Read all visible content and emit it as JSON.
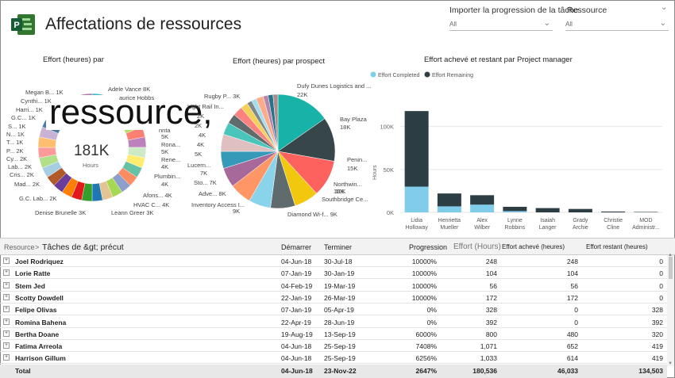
{
  "header": {
    "title": "Affectations de ressources",
    "filter1_label": "Importer la progression de la tâche",
    "filter1_value": "All",
    "filter2_label": "Ressource",
    "filter2_value": "All"
  },
  "donut1": {
    "title": "Effort (heures) par",
    "overlay": "ressource,",
    "center_value": "181K",
    "center_label": "Hours",
    "labels": [
      "Megan B... 1K",
      "Cynthi... 1K",
      "Harri... 1K",
      "G.C... 1K",
      "S... 1K",
      "N... 1K",
      "T... 1K",
      "P... 2K",
      "Cy... 2K",
      "Lab... 2K",
      "Cris... 2K",
      "Mad... 2K",
      "G.C. Lab... 2K",
      "Denise Brunelle 3K",
      "Adele Vance 8K",
      "aurice Hobbs",
      "Rona...",
      "5K",
      "Rene...",
      "4K",
      "Plumbin...",
      "4K",
      "Afons... 4K",
      "HVAC C... 4K",
      "Leann Greer 3K",
      "nnta",
      "5K"
    ]
  },
  "donut2": {
    "title": "Effort (heures) par prospect",
    "labels": [
      "Rugby P... 3K",
      "Light Rail In...",
      "2K",
      "2K",
      "4K",
      "4K",
      "5K",
      "Lucern...",
      "7K",
      "Sto... 7K",
      "Adve... 8K",
      "Inventory Access I...",
      "9K",
      "Diamond Wi-f... 9K",
      "Southbridge Ce...",
      "10K",
      "Northwin...",
      "10K",
      "Penin...",
      "15K",
      "Bay Plaza",
      "18K",
      "Dufy Dunes Logistics and ...",
      "22K"
    ]
  },
  "bar_chart": {
    "title": "Effort achevé et restant par Project manager",
    "ylabel": "Hours",
    "yticks": [
      "0K",
      "50K",
      "100K"
    ],
    "legend": [
      "Effort Completed",
      "Effort Remaining"
    ]
  },
  "chart_data": {
    "type": "bar",
    "stacked": true,
    "categories": [
      "Lidia Holloway",
      "Henrietta Mueller",
      "Alex Wilber",
      "Lynne Robbins",
      "Isaiah Langer",
      "Grady Archie",
      "Christie Cline",
      "MOD Administr..."
    ],
    "series": [
      {
        "name": "Effort Completed",
        "values": [
          30000,
          7000,
          9000,
          1500,
          0,
          0,
          0,
          0
        ],
        "color": "#7fcdea"
      },
      {
        "name": "Effort Remaining",
        "values": [
          88000,
          15000,
          11000,
          5000,
          5000,
          4000,
          1000,
          500
        ],
        "color": "#2c3d44"
      }
    ],
    "ylim": [
      0,
      120000
    ],
    "grid": true,
    "legend_position": "top-left"
  },
  "table": {
    "group_header": "Resource",
    "sub_header": "Tâches de &gt; précut",
    "columns": [
      "Démarrer",
      "Terminer",
      "Progression",
      "Effort (Hours)",
      "Effort achevé (heures)",
      "Effort restant (heures)"
    ],
    "rows": [
      {
        "name": "Joel Rodriquez",
        "start": "04-Jun-18",
        "end": "30-Jul-18",
        "progress": "10000%",
        "effort": "248",
        "done": "248",
        "remaining": "0"
      },
      {
        "name": "Lorie Ratte",
        "start": "07-Jan-19",
        "end": "30-Jan-19",
        "progress": "10000%",
        "effort": "104",
        "done": "104",
        "remaining": "0"
      },
      {
        "name": "Stem Jed",
        "start": "04-Feb-19",
        "end": "19-Mar-19",
        "progress": "10000%",
        "effort": "56",
        "done": "56",
        "remaining": "0"
      },
      {
        "name": "Scotty Dowdell",
        "start": "22-Jan-19",
        "end": "26-Mar-19",
        "progress": "10000%",
        "effort": "172",
        "done": "172",
        "remaining": "0"
      },
      {
        "name": "Felipe Olivas",
        "start": "07-Jan-19",
        "end": "05-Apr-19",
        "progress": "0%",
        "effort": "328",
        "done": "0",
        "remaining": "328"
      },
      {
        "name": "Romina Bahena",
        "start": "22-Apr-19",
        "end": "28-Jun-19",
        "progress": "0%",
        "effort": "392",
        "done": "0",
        "remaining": "392"
      },
      {
        "name": "Bertha Doane",
        "start": "19-Aug-19",
        "end": "13-Sep-19",
        "progress": "6000%",
        "effort": "800",
        "done": "480",
        "remaining": "320"
      },
      {
        "name": "Fatima Arreola",
        "start": "04-Jun-18",
        "end": "25-Sep-19",
        "progress": "7408%",
        "effort": "1,071",
        "done": "652",
        "remaining": "419"
      },
      {
        "name": "Harrison Gillum",
        "start": "04-Jun-18",
        "end": "25-Sep-19",
        "progress": "6256%",
        "effort": "1,033",
        "done": "614",
        "remaining": "419"
      }
    ],
    "total": {
      "name": "Total",
      "start": "04-Jun-18",
      "end": "23-Nov-22",
      "progress": "2647%",
      "effort": "180,536",
      "done": "46,033",
      "remaining": "134,503"
    }
  }
}
